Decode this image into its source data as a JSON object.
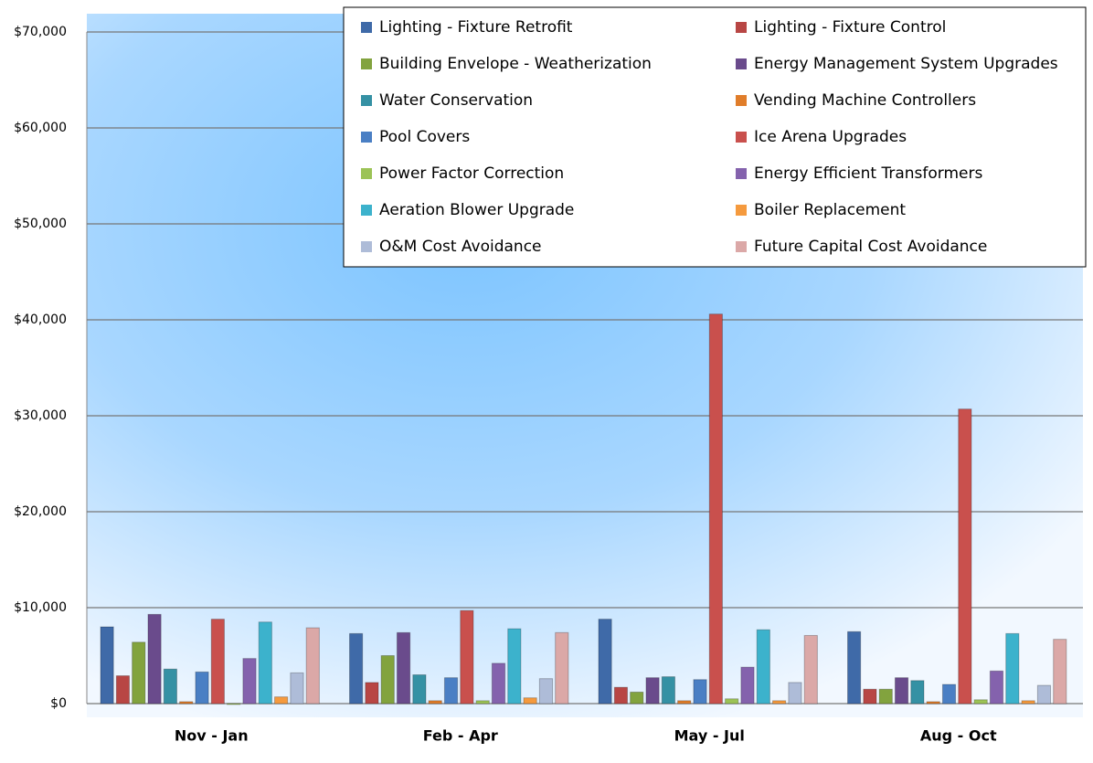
{
  "chart_data": {
    "type": "bar",
    "categories": [
      "Nov - Jan",
      "Feb - Apr",
      "May - Jul",
      "Aug - Oct"
    ],
    "ylim": [
      0,
      70000
    ],
    "yticks": [
      {
        "value": 0,
        "label": "$0"
      },
      {
        "value": 10000,
        "label": "$10,000"
      },
      {
        "value": 20000,
        "label": "$20,000"
      },
      {
        "value": 30000,
        "label": "$30,000"
      },
      {
        "value": 40000,
        "label": "$40,000"
      },
      {
        "value": 50000,
        "label": "$50,000"
      },
      {
        "value": 60000,
        "label": "$60,000"
      },
      {
        "value": 70000,
        "label": "$70,000"
      }
    ],
    "grid": true,
    "legend": "top-right",
    "series": [
      {
        "name": "Lighting - Fixture Retrofit",
        "color": "#3f6aa8",
        "values": [
          8000,
          7300,
          8800,
          7500
        ]
      },
      {
        "name": "Lighting - Fixture Control",
        "color": "#b84644",
        "values": [
          2900,
          2200,
          1700,
          1500
        ]
      },
      {
        "name": "Building Envelope - Weatherization",
        "color": "#82a33e",
        "values": [
          6400,
          5000,
          1200,
          1500
        ]
      },
      {
        "name": "Energy Management System Upgrades",
        "color": "#6a4b8c",
        "values": [
          9300,
          7400,
          2700,
          2700
        ]
      },
      {
        "name": "Water Conservation",
        "color": "#3591a4",
        "values": [
          3600,
          3000,
          2800,
          2400
        ]
      },
      {
        "name": "Vending Machine Controllers",
        "color": "#e07d2a",
        "values": [
          200,
          300,
          300,
          200
        ]
      },
      {
        "name": "Pool Covers",
        "color": "#4a7fc4",
        "values": [
          3300,
          2700,
          2500,
          2000
        ]
      },
      {
        "name": "Ice Arena Upgrades",
        "color": "#c9504d",
        "values": [
          8800,
          9700,
          40600,
          30700
        ]
      },
      {
        "name": "Power Factor Correction",
        "color": "#9cc356",
        "values": [
          0,
          300,
          500,
          400
        ]
      },
      {
        "name": "Energy Efficient Transformers",
        "color": "#8462ad",
        "values": [
          4700,
          4200,
          3800,
          3400
        ]
      },
      {
        "name": "Aeration Blower Upgrade",
        "color": "#3cb2cc",
        "values": [
          8500,
          7800,
          7700,
          7300
        ]
      },
      {
        "name": "Boiler Replacement",
        "color": "#f59a3e",
        "values": [
          700,
          600,
          300,
          300
        ]
      },
      {
        "name": "O&M Cost Avoidance",
        "color": "#aebcd8",
        "values": [
          3200,
          2600,
          2200,
          1900
        ]
      },
      {
        "name": "Future Capital Cost Avoidance",
        "color": "#dba8a7",
        "values": [
          7900,
          7400,
          7100,
          6700
        ]
      }
    ]
  }
}
